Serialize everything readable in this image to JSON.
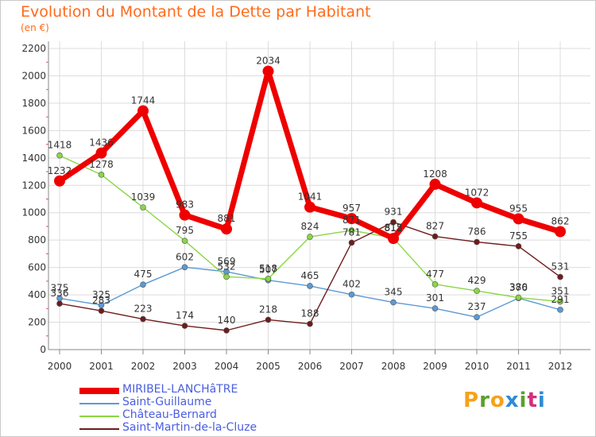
{
  "title": "Evolution du Montant de la Dette par Habitant",
  "subtitle": "(en €)",
  "brand": {
    "letters": [
      "P",
      "r",
      "o",
      "x",
      "i",
      "t",
      "i"
    ],
    "colors": [
      "#f7a11a",
      "#5aa02c",
      "#f7a11a",
      "#2e8bd6",
      "#5aa02c",
      "#d32f7a",
      "#2e8bd6"
    ]
  },
  "chart_data": {
    "type": "line",
    "x": [
      "2000",
      "2001",
      "2002",
      "2003",
      "2004",
      "2005",
      "2006",
      "2007",
      "2008",
      "2009",
      "2010",
      "2011",
      "2012"
    ],
    "ylim": [
      0,
      2200
    ],
    "yticks": [
      "0",
      "200",
      "400",
      "600",
      "800",
      "1000",
      "1200",
      "1400",
      "1600",
      "1800",
      "2000",
      "2200"
    ],
    "grid": true,
    "legend_position": "bottom-left",
    "series": [
      {
        "name": "MIRIBEL-LANCHâTRE",
        "color": "#ee0000",
        "values": [
          1232,
          1436,
          1744,
          983,
          881,
          2034,
          1041,
          957,
          812,
          1208,
          1072,
          955,
          862
        ],
        "labels": [
          "1232",
          "1436",
          "1744",
          "983",
          "881",
          "2034",
          "1041",
          "957",
          "812",
          "1208",
          "1072",
          "955",
          "862"
        ]
      },
      {
        "name": "Saint-Guillaume",
        "color": "#5b9ad5",
        "values": [
          375,
          325,
          475,
          602,
          569,
          507,
          465,
          402,
          345,
          301,
          237,
          376,
          291
        ],
        "labels": [
          "375",
          "325",
          "475",
          "602",
          "569",
          "507",
          "465",
          "402",
          "345",
          "301",
          "237",
          "376",
          "291"
        ]
      },
      {
        "name": "Château-Bernard",
        "color": "#8ad645",
        "values": [
          1418,
          1278,
          1039,
          795,
          532,
          518,
          824,
          871,
          815,
          477,
          429,
          380,
          351
        ],
        "labels": [
          "1418",
          "1278",
          "1039",
          "795",
          "532",
          "518",
          "824",
          "871",
          "815",
          "477",
          "429",
          "380",
          "351"
        ]
      },
      {
        "name": "Saint-Martin-de-la-Cluze",
        "color": "#6e1c1c",
        "values": [
          336,
          283,
          223,
          174,
          140,
          218,
          188,
          781,
          931,
          827,
          786,
          755,
          531
        ],
        "labels": [
          "336",
          "283",
          "223",
          "174",
          "140",
          "218",
          "188",
          "781",
          "931",
          "827",
          "786",
          "755",
          "531"
        ]
      }
    ]
  }
}
